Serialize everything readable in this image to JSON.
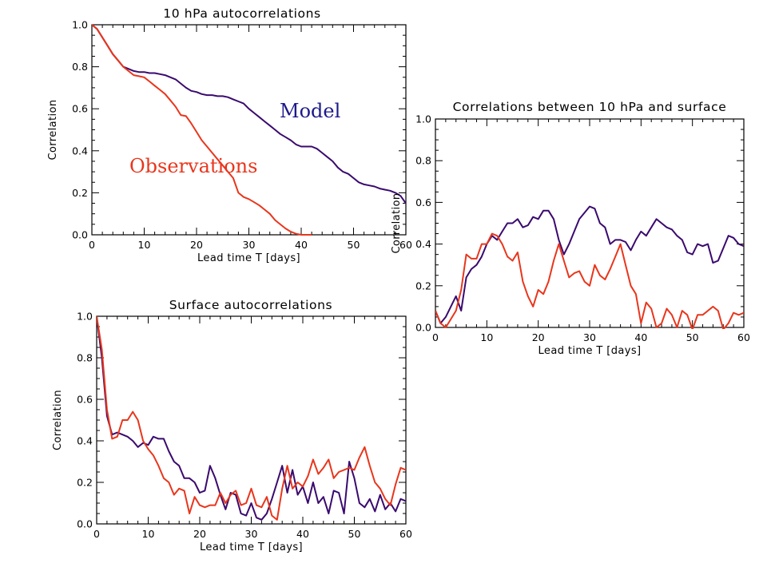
{
  "colors": {
    "model": "#3a0a6e",
    "observations": "#e8361c",
    "axes": "#000000",
    "model_label": "#1c1a8c",
    "observations_label": "#e8361c"
  },
  "chart_data": [
    {
      "type": "line",
      "title": "10 hPa autocorrelations",
      "xlabel": "Lead time T [days]",
      "ylabel": "Correlation",
      "xlim": [
        0,
        60
      ],
      "ylim": [
        0,
        1
      ],
      "xticks": [
        "0",
        "10",
        "20",
        "30",
        "40",
        "50",
        "60"
      ],
      "yticks": [
        "0.0",
        "0.2",
        "0.4",
        "0.6",
        "0.8",
        "1.0"
      ],
      "annotations": [
        "Model",
        "Observations"
      ],
      "series": [
        {
          "name": "Model",
          "x": [
            0,
            1,
            2,
            3,
            4,
            5,
            6,
            7,
            8,
            9,
            10,
            11,
            12,
            13,
            14,
            15,
            16,
            17,
            18,
            19,
            20,
            21,
            22,
            23,
            24,
            25,
            26,
            27,
            28,
            29,
            30,
            31,
            32,
            33,
            34,
            35,
            36,
            37,
            38,
            39,
            40,
            41,
            42,
            43,
            44,
            45,
            46,
            47,
            48,
            49,
            50,
            51,
            52,
            53,
            54,
            55,
            56,
            57,
            58,
            59,
            60
          ],
          "y": [
            1.0,
            0.98,
            0.94,
            0.9,
            0.86,
            0.83,
            0.8,
            0.79,
            0.78,
            0.775,
            0.775,
            0.77,
            0.77,
            0.765,
            0.76,
            0.75,
            0.74,
            0.72,
            0.7,
            0.685,
            0.68,
            0.67,
            0.665,
            0.665,
            0.66,
            0.66,
            0.655,
            0.645,
            0.635,
            0.625,
            0.6,
            0.58,
            0.56,
            0.54,
            0.52,
            0.5,
            0.48,
            0.465,
            0.45,
            0.43,
            0.42,
            0.42,
            0.42,
            0.41,
            0.39,
            0.37,
            0.35,
            0.32,
            0.3,
            0.29,
            0.27,
            0.25,
            0.24,
            0.235,
            0.23,
            0.22,
            0.215,
            0.21,
            0.2,
            0.185,
            0.15
          ]
        },
        {
          "name": "Observations",
          "x": [
            0,
            1,
            2,
            3,
            4,
            5,
            6,
            7,
            8,
            9,
            10,
            11,
            12,
            13,
            14,
            15,
            16,
            17,
            18,
            19,
            20,
            21,
            22,
            23,
            24,
            25,
            26,
            27,
            28,
            29,
            30,
            31,
            32,
            33,
            34,
            35,
            36,
            37,
            38,
            39,
            40,
            41,
            42
          ],
          "y": [
            1.0,
            0.98,
            0.94,
            0.9,
            0.86,
            0.83,
            0.8,
            0.78,
            0.76,
            0.755,
            0.75,
            0.73,
            0.71,
            0.69,
            0.67,
            0.64,
            0.61,
            0.57,
            0.565,
            0.53,
            0.49,
            0.45,
            0.42,
            0.39,
            0.36,
            0.33,
            0.3,
            0.27,
            0.2,
            0.18,
            0.17,
            0.155,
            0.14,
            0.12,
            0.1,
            0.07,
            0.05,
            0.03,
            0.015,
            0.005,
            0.0,
            0.0,
            0.0
          ]
        }
      ]
    },
    {
      "type": "line",
      "title": "Correlations between 10 hPa and surface",
      "xlabel": "Lead time T [days]",
      "ylabel": "Correlation",
      "xlim": [
        0,
        60
      ],
      "ylim": [
        0,
        1
      ],
      "xticks": [
        "0",
        "10",
        "20",
        "30",
        "40",
        "50",
        "60"
      ],
      "yticks": [
        "0.0",
        "0.2",
        "0.4",
        "0.6",
        "0.8",
        "1.0"
      ],
      "series": [
        {
          "name": "Model",
          "x": [
            0,
            1,
            2,
            3,
            4,
            5,
            6,
            7,
            8,
            9,
            10,
            11,
            12,
            13,
            14,
            15,
            16,
            17,
            18,
            19,
            20,
            21,
            22,
            23,
            24,
            25,
            26,
            27,
            28,
            29,
            30,
            31,
            32,
            33,
            34,
            35,
            36,
            37,
            38,
            39,
            40,
            41,
            42,
            43,
            44,
            45,
            46,
            47,
            48,
            49,
            50,
            51,
            52,
            53,
            54,
            55,
            56,
            57,
            58,
            59,
            60
          ],
          "y": [
            0.08,
            0.02,
            0.05,
            0.1,
            0.15,
            0.08,
            0.24,
            0.28,
            0.3,
            0.34,
            0.4,
            0.44,
            0.42,
            0.46,
            0.5,
            0.5,
            0.52,
            0.48,
            0.49,
            0.53,
            0.52,
            0.56,
            0.56,
            0.52,
            0.42,
            0.35,
            0.4,
            0.46,
            0.52,
            0.55,
            0.58,
            0.57,
            0.5,
            0.48,
            0.4,
            0.42,
            0.42,
            0.41,
            0.37,
            0.42,
            0.46,
            0.44,
            0.48,
            0.52,
            0.5,
            0.48,
            0.47,
            0.44,
            0.42,
            0.36,
            0.35,
            0.4,
            0.39,
            0.4,
            0.31,
            0.32,
            0.38,
            0.44,
            0.43,
            0.4,
            0.39
          ]
        },
        {
          "name": "Observations",
          "x": [
            0,
            1,
            2,
            3,
            4,
            5,
            6,
            7,
            8,
            9,
            10,
            11,
            12,
            13,
            14,
            15,
            16,
            17,
            18,
            19,
            20,
            21,
            22,
            23,
            24,
            25,
            26,
            27,
            28,
            29,
            30,
            31,
            32,
            33,
            34,
            35,
            36,
            37,
            38,
            39,
            40,
            41,
            42,
            43,
            44,
            45,
            46,
            47,
            48,
            49,
            50,
            51,
            52,
            53,
            54,
            55,
            56,
            57,
            58,
            59,
            60
          ],
          "y": [
            0.08,
            0.02,
            0.0,
            0.04,
            0.08,
            0.18,
            0.35,
            0.33,
            0.33,
            0.4,
            0.4,
            0.45,
            0.44,
            0.4,
            0.34,
            0.32,
            0.36,
            0.22,
            0.15,
            0.1,
            0.18,
            0.16,
            0.22,
            0.32,
            0.4,
            0.32,
            0.24,
            0.26,
            0.27,
            0.22,
            0.2,
            0.3,
            0.25,
            0.23,
            0.28,
            0.34,
            0.4,
            0.3,
            0.2,
            0.16,
            0.02,
            0.12,
            0.09,
            0.0,
            0.02,
            0.09,
            0.06,
            0.0,
            0.08,
            0.06,
            -0.01,
            0.06,
            0.06,
            0.08,
            0.1,
            0.08,
            -0.01,
            0.02,
            0.07,
            0.06,
            0.07
          ]
        }
      ]
    },
    {
      "type": "line",
      "title": "Surface autocorrelations",
      "xlabel": "Lead time T [days]",
      "ylabel": "Correlation",
      "xlim": [
        0,
        60
      ],
      "ylim": [
        0,
        1
      ],
      "xticks": [
        "0",
        "10",
        "20",
        "30",
        "40",
        "50",
        "60"
      ],
      "yticks": [
        "0.0",
        "0.2",
        "0.4",
        "0.6",
        "0.8",
        "1.0"
      ],
      "series": [
        {
          "name": "Model",
          "x": [
            0,
            1,
            2,
            3,
            4,
            5,
            6,
            7,
            8,
            9,
            10,
            11,
            12,
            13,
            14,
            15,
            16,
            17,
            18,
            19,
            20,
            21,
            22,
            23,
            24,
            25,
            26,
            27,
            28,
            29,
            30,
            31,
            32,
            33,
            34,
            35,
            36,
            37,
            38,
            39,
            40,
            41,
            42,
            43,
            44,
            45,
            46,
            47,
            48,
            49,
            50,
            51,
            52,
            53,
            54,
            55,
            56,
            57,
            58,
            59,
            60
          ],
          "y": [
            1.0,
            0.8,
            0.52,
            0.43,
            0.44,
            0.43,
            0.42,
            0.4,
            0.37,
            0.39,
            0.38,
            0.42,
            0.41,
            0.41,
            0.35,
            0.3,
            0.28,
            0.22,
            0.22,
            0.2,
            0.15,
            0.16,
            0.28,
            0.22,
            0.14,
            0.07,
            0.15,
            0.14,
            0.05,
            0.04,
            0.1,
            0.03,
            0.02,
            0.05,
            0.12,
            0.2,
            0.28,
            0.15,
            0.26,
            0.14,
            0.18,
            0.1,
            0.2,
            0.1,
            0.13,
            0.05,
            0.16,
            0.15,
            0.05,
            0.3,
            0.22,
            0.1,
            0.08,
            0.12,
            0.06,
            0.14,
            0.07,
            0.1,
            0.06,
            0.12,
            0.11
          ]
        },
        {
          "name": "Observations",
          "x": [
            0,
            1,
            2,
            3,
            4,
            5,
            6,
            7,
            8,
            9,
            10,
            11,
            12,
            13,
            14,
            15,
            16,
            17,
            18,
            19,
            20,
            21,
            22,
            23,
            24,
            25,
            26,
            27,
            28,
            29,
            30,
            31,
            32,
            33,
            34,
            35,
            36,
            37,
            38,
            39,
            40,
            41,
            42,
            43,
            44,
            45,
            46,
            47,
            48,
            49,
            50,
            51,
            52,
            53,
            54,
            55,
            56,
            57,
            58,
            59,
            60
          ],
          "y": [
            1.0,
            0.84,
            0.55,
            0.41,
            0.42,
            0.5,
            0.5,
            0.54,
            0.5,
            0.4,
            0.36,
            0.33,
            0.28,
            0.22,
            0.2,
            0.14,
            0.17,
            0.16,
            0.05,
            0.13,
            0.09,
            0.08,
            0.09,
            0.09,
            0.15,
            0.1,
            0.14,
            0.16,
            0.09,
            0.1,
            0.17,
            0.09,
            0.08,
            0.13,
            0.04,
            0.02,
            0.17,
            0.28,
            0.17,
            0.2,
            0.18,
            0.23,
            0.31,
            0.24,
            0.27,
            0.31,
            0.22,
            0.25,
            0.26,
            0.27,
            0.26,
            0.32,
            0.37,
            0.28,
            0.2,
            0.17,
            0.12,
            0.09,
            0.19,
            0.27,
            0.26
          ]
        }
      ]
    }
  ]
}
